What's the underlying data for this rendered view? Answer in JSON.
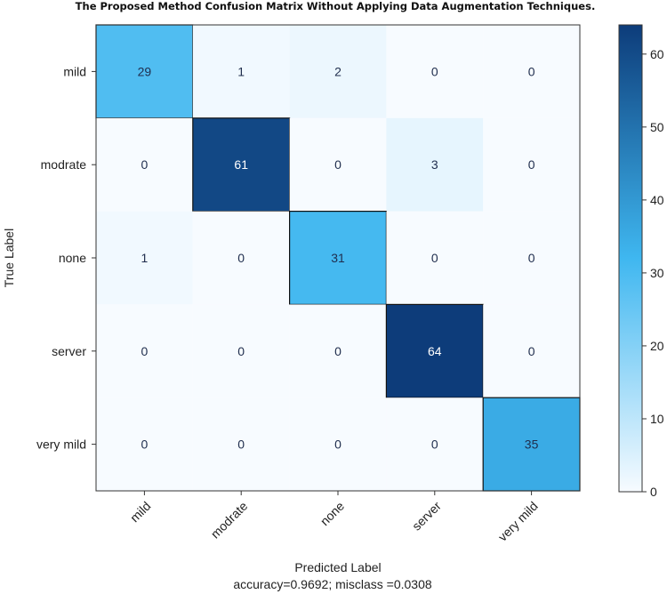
{
  "chart_data": {
    "type": "heatmap",
    "title": "The Proposed Method Confusion Matrix Without Applying Data Augmentation Techniques.",
    "xlabel": "Predicted Label",
    "footer": "accuracy=0.9692; misclass =0.0308",
    "ylabel": "True Label",
    "row_labels": [
      "mild",
      "modrate",
      "none",
      "server",
      "very mild"
    ],
    "col_labels": [
      "mild",
      "modrate",
      "none",
      "server",
      "very mild"
    ],
    "matrix": [
      [
        29,
        1,
        2,
        0,
        0
      ],
      [
        0,
        61,
        0,
        3,
        0
      ],
      [
        1,
        0,
        31,
        0,
        0
      ],
      [
        0,
        0,
        0,
        64,
        0
      ],
      [
        0,
        0,
        0,
        0,
        35
      ]
    ],
    "colorbar": {
      "range": [
        0,
        64
      ],
      "ticks": [
        0,
        10,
        20,
        30,
        40,
        50,
        60
      ]
    },
    "colors": {
      "low": "#f7fbff",
      "mid": "#3fb7f0",
      "high": "#0d3c7a"
    }
  }
}
